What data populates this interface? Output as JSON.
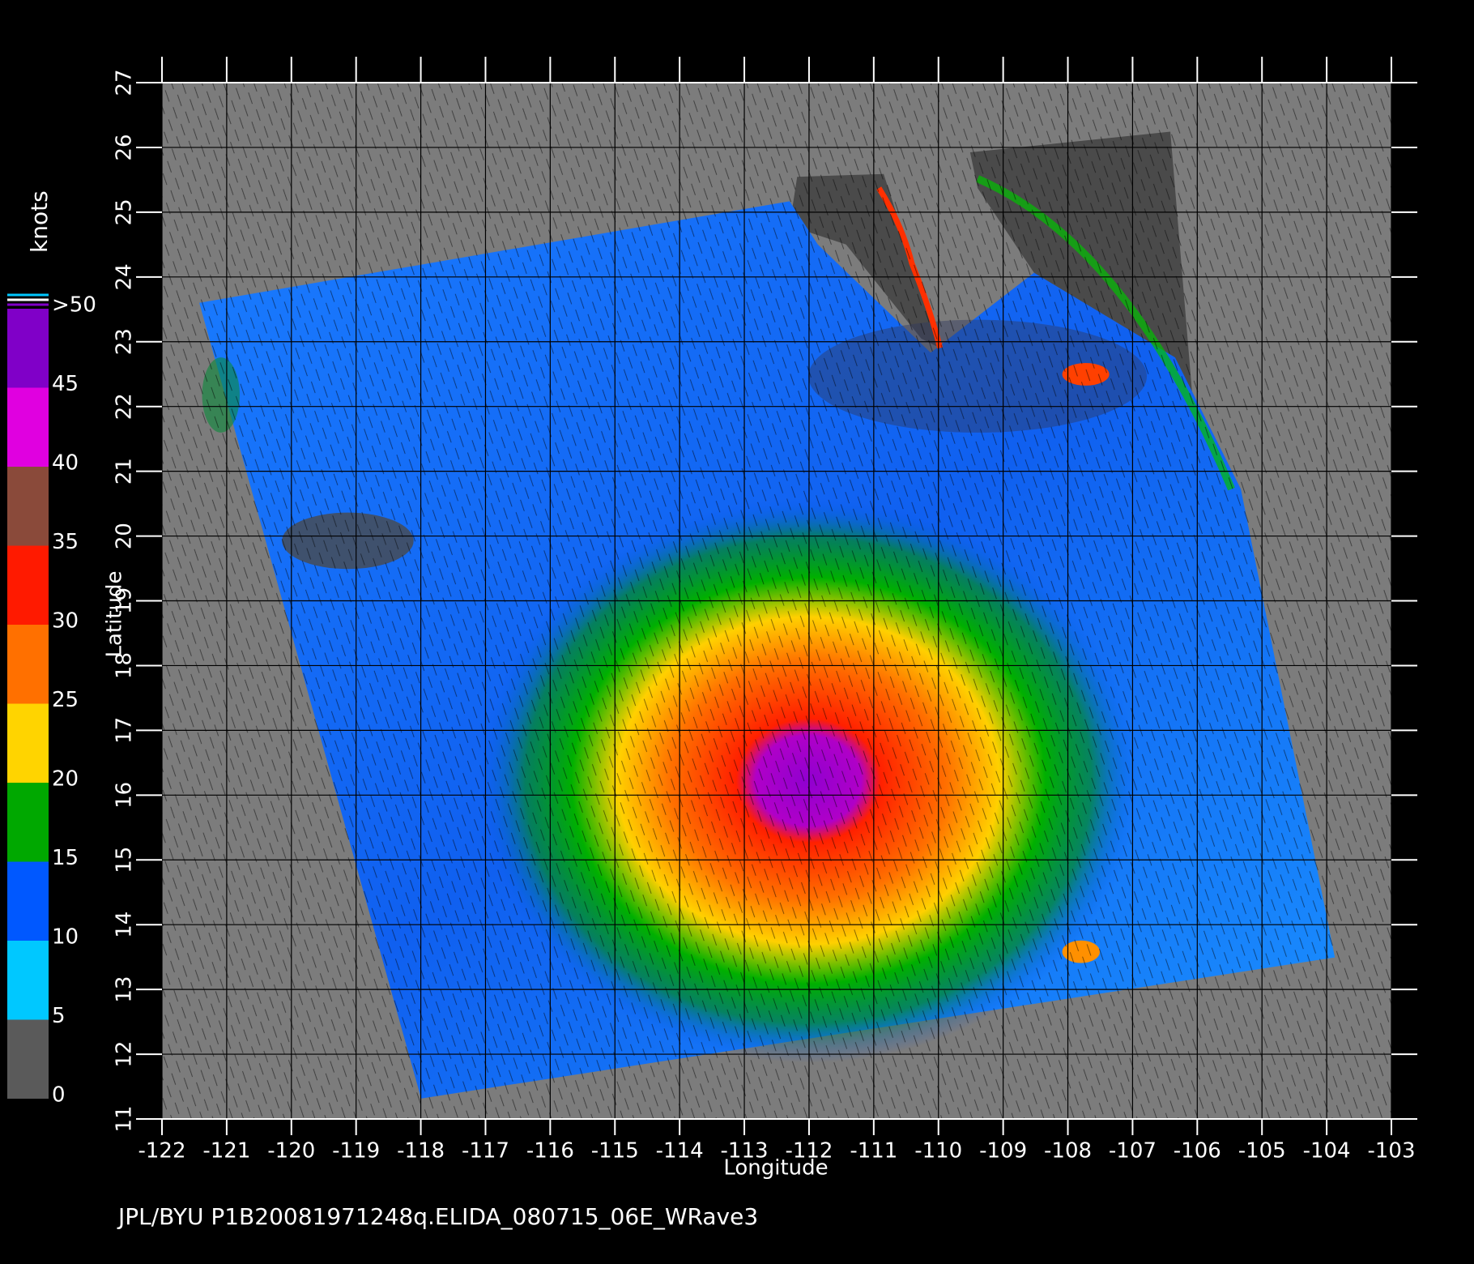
{
  "chart_data": {
    "type": "wind-map",
    "xlabel": "Longitude",
    "ylabel": "Latitude",
    "footer": "JPL/BYU  P1B20081971248q.ELIDA_080715_06E_WRave3",
    "xlim": [
      -122,
      -103
    ],
    "xticks": [
      -122,
      -121,
      -120,
      -119,
      -118,
      -117,
      -116,
      -115,
      -114,
      -113,
      -112,
      -111,
      -110,
      -109,
      -108,
      -107,
      -106,
      -105,
      -104,
      -103
    ],
    "ylim": [
      11,
      27
    ],
    "yticks": [
      11,
      12,
      13,
      14,
      15,
      16,
      17,
      18,
      19,
      20,
      21,
      22,
      23,
      24,
      25,
      26,
      27
    ],
    "grid": true,
    "colorbar": {
      "label": "knots",
      "ticks": [
        0,
        5,
        10,
        15,
        20,
        25,
        30,
        35,
        40,
        45,
        {
          "value": 50,
          "label": ">50"
        }
      ],
      "colors": [
        "#5a5a5a",
        "#00c8ff",
        "#0058ff",
        "#00a800",
        "#ffd400",
        "#ff7000",
        "#ff1a00",
        "#8a4a3a",
        "#e000e0",
        "#8000c8"
      ]
    }
  }
}
